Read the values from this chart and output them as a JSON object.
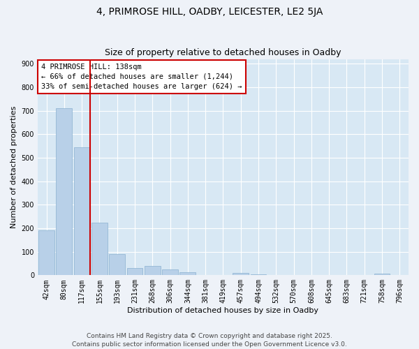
{
  "title": "4, PRIMROSE HILL, OADBY, LEICESTER, LE2 5JA",
  "subtitle": "Size of property relative to detached houses in Oadby",
  "xlabel": "Distribution of detached houses by size in Oadby",
  "ylabel": "Number of detached properties",
  "bar_labels": [
    "42sqm",
    "80sqm",
    "117sqm",
    "155sqm",
    "193sqm",
    "231sqm",
    "268sqm",
    "306sqm",
    "344sqm",
    "381sqm",
    "419sqm",
    "457sqm",
    "494sqm",
    "532sqm",
    "570sqm",
    "608sqm",
    "645sqm",
    "683sqm",
    "721sqm",
    "758sqm",
    "796sqm"
  ],
  "bar_values": [
    190,
    710,
    545,
    225,
    90,
    30,
    40,
    25,
    13,
    0,
    0,
    10,
    5,
    0,
    0,
    0,
    0,
    0,
    0,
    8,
    0
  ],
  "bar_color": "#b8d0e8",
  "bar_edge_color": "#8ab0d0",
  "vline_color": "#cc0000",
  "annotation_title": "4 PRIMROSE HILL: 138sqm",
  "annotation_line1": "← 66% of detached houses are smaller (1,244)",
  "annotation_line2": "33% of semi-detached houses are larger (624) →",
  "annotation_box_facecolor": "#ffffff",
  "annotation_box_edgecolor": "#cc0000",
  "ylim": [
    0,
    920
  ],
  "yticks": [
    0,
    100,
    200,
    300,
    400,
    500,
    600,
    700,
    800,
    900
  ],
  "footer_line1": "Contains HM Land Registry data © Crown copyright and database right 2025.",
  "footer_line2": "Contains public sector information licensed under the Open Government Licence v3.0.",
  "background_color": "#eef2f8",
  "plot_bg_color": "#d8e8f4",
  "grid_color": "#ffffff",
  "title_fontsize": 10,
  "subtitle_fontsize": 9,
  "axis_label_fontsize": 8,
  "tick_fontsize": 7,
  "annotation_fontsize": 7.5,
  "footer_fontsize": 6.5
}
